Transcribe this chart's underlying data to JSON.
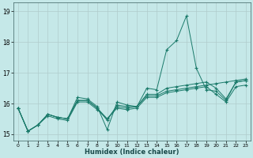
{
  "xlabel": "Humidex (Indice chaleur)",
  "xlim": [
    -0.5,
    23.5
  ],
  "ylim": [
    14.8,
    19.3
  ],
  "yticks": [
    15,
    16,
    17,
    18,
    19
  ],
  "xticks": [
    0,
    1,
    2,
    3,
    4,
    5,
    6,
    7,
    8,
    9,
    10,
    11,
    12,
    13,
    14,
    15,
    16,
    17,
    18,
    19,
    20,
    21,
    22,
    23
  ],
  "background_color": "#c5e8e8",
  "grid_color": "#b0cccc",
  "line_color": "#1a7a6a",
  "lines": [
    [
      15.85,
      15.1,
      15.3,
      15.65,
      15.55,
      15.5,
      16.2,
      16.15,
      15.9,
      15.15,
      16.05,
      15.95,
      15.9,
      16.5,
      16.45,
      17.75,
      18.05,
      18.85,
      17.15,
      16.45,
      16.4,
      16.1,
      16.7,
      16.75
    ],
    [
      15.85,
      15.1,
      15.3,
      15.65,
      15.55,
      15.5,
      16.1,
      16.1,
      15.85,
      15.45,
      15.95,
      15.9,
      15.9,
      16.3,
      16.3,
      16.5,
      16.55,
      16.6,
      16.65,
      16.7,
      16.5,
      16.15,
      16.7,
      16.75
    ],
    [
      15.85,
      15.1,
      15.3,
      15.65,
      15.55,
      15.5,
      16.1,
      16.1,
      15.85,
      15.5,
      15.9,
      15.85,
      15.9,
      16.25,
      16.25,
      16.4,
      16.45,
      16.5,
      16.55,
      16.6,
      16.65,
      16.7,
      16.75,
      16.8
    ],
    [
      15.85,
      15.1,
      15.3,
      15.6,
      15.5,
      15.45,
      16.05,
      16.05,
      15.8,
      15.5,
      15.85,
      15.8,
      15.85,
      16.2,
      16.2,
      16.35,
      16.4,
      16.45,
      16.5,
      16.55,
      16.3,
      16.05,
      16.55,
      16.6
    ]
  ]
}
